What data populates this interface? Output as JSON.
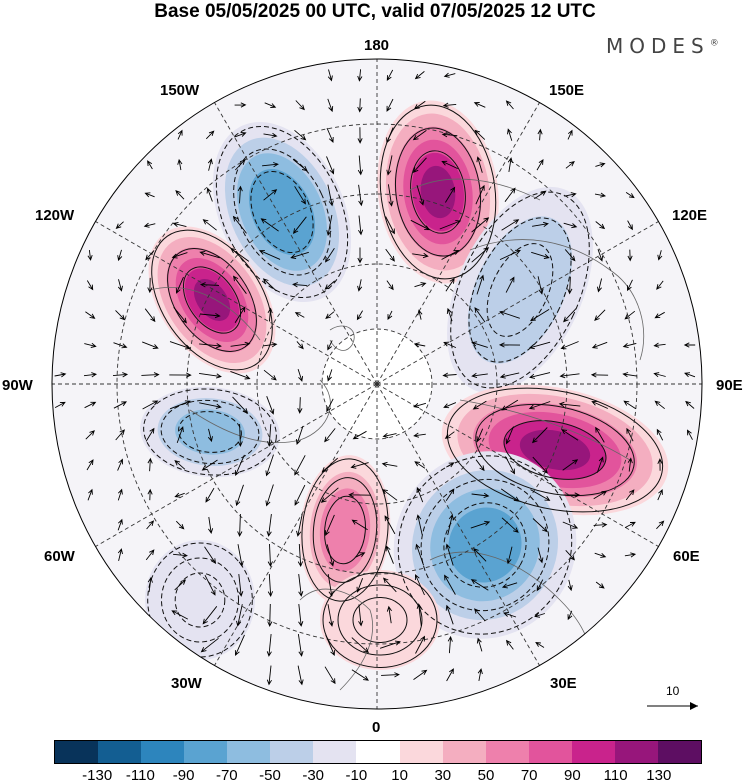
{
  "title": "Base 05/05/2025 00 UTC, valid 07/05/2025 12 UTC",
  "brand": "MODES",
  "brand_mark": "®",
  "longitude_labels": {
    "top": "180",
    "bottom": "0",
    "left": "90W",
    "right": "90E",
    "upper_left": "150W",
    "upper_right": "150E",
    "left_upper": "120W",
    "right_upper": "120E",
    "left_lower": "60W",
    "right_lower": "60E",
    "lower_left": "30W",
    "lower_right": "30E"
  },
  "reference_vector": "10",
  "colorbar": {
    "colors": [
      "#08335a",
      "#135e92",
      "#2d85bd",
      "#5aa3d1",
      "#8ebde0",
      "#bccfe8",
      "#e4e3f1",
      "#ffffff",
      "#fbd8dc",
      "#f4aec0",
      "#ee80ac",
      "#e2549c",
      "#c9238c",
      "#97167b",
      "#5d0e62"
    ],
    "ticks": [
      "-130",
      "-110",
      "-90",
      "-70",
      "-50",
      "-30",
      "-10",
      "10",
      "30",
      "50",
      "70",
      "90",
      "110",
      "130"
    ]
  },
  "anomaly_centers": [
    {
      "name": "pos-150E",
      "value": 120
    },
    {
      "name": "neg-165W",
      "value": -95
    },
    {
      "name": "pos-120W",
      "value": 120
    },
    {
      "name": "neg-100W",
      "value": -60
    },
    {
      "name": "neg-120E",
      "value": -50
    },
    {
      "name": "pos-75E",
      "value": 125
    },
    {
      "name": "neg-45E",
      "value": -80
    },
    {
      "name": "pos-10W",
      "value": 70
    },
    {
      "name": "pos-10E",
      "value": 35
    },
    {
      "name": "neg-45W",
      "value": -20
    }
  ]
}
